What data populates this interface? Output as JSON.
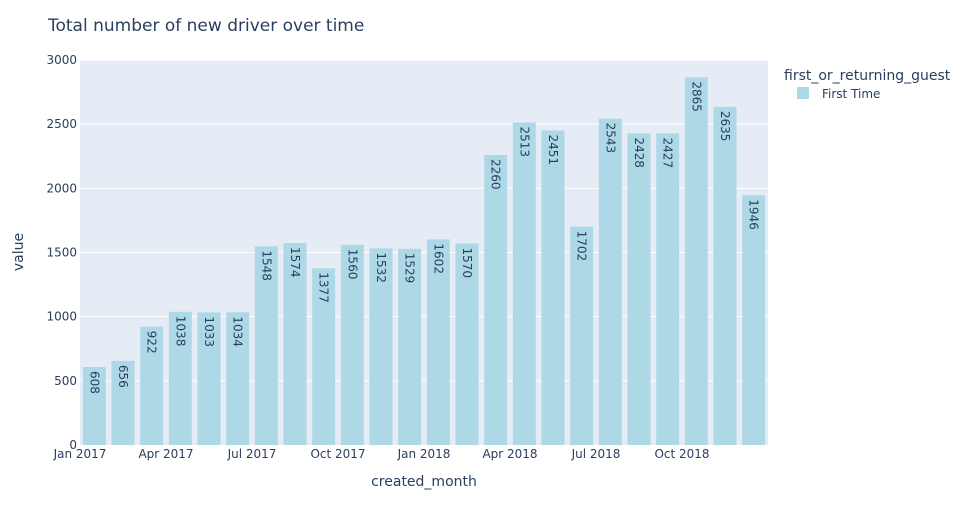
{
  "chart_data": {
    "type": "bar",
    "title": "Total number of new driver over time",
    "xlabel": "created_month",
    "ylabel": "value",
    "ylim": [
      0,
      3000
    ],
    "yticks": [
      0,
      500,
      1000,
      1500,
      2000,
      2500,
      3000
    ],
    "x_tick_labels": [
      "Jan 2017",
      "Apr 2017",
      "Jul 2017",
      "Oct 2017",
      "Jan 2018",
      "Apr 2018",
      "Jul 2018",
      "Oct 2018"
    ],
    "x_tick_months": [
      "2017-01",
      "2017-04",
      "2017-07",
      "2017-10",
      "2018-01",
      "2018-04",
      "2018-07",
      "2018-10"
    ],
    "categories": [
      "2017-01",
      "2017-02",
      "2017-03",
      "2017-04",
      "2017-05",
      "2017-06",
      "2017-07",
      "2017-08",
      "2017-09",
      "2017-10",
      "2017-11",
      "2017-12",
      "2018-01",
      "2018-02",
      "2018-03",
      "2018-04",
      "2018-05",
      "2018-06",
      "2018-07",
      "2018-08",
      "2018-09",
      "2018-10",
      "2018-11",
      "2018-12"
    ],
    "legend_title": "first_or_returning_guest",
    "legend_position": "top-right",
    "grid": true,
    "series": [
      {
        "name": "First Time",
        "color": "#add8e6",
        "values": [
          608,
          656,
          922,
          1038,
          1033,
          1034,
          1548,
          1574,
          1377,
          1560,
          1532,
          1529,
          1602,
          1570,
          2260,
          2513,
          2451,
          1702,
          2543,
          2428,
          2427,
          2865,
          2635,
          1946
        ]
      }
    ]
  }
}
